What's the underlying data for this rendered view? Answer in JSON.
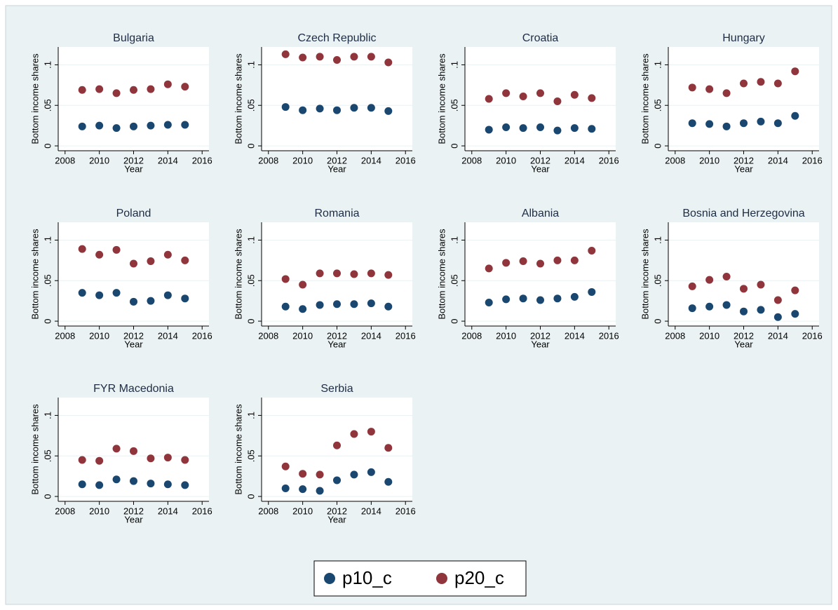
{
  "chart_data": [
    {
      "type": "scatter",
      "title": "Bulgaria",
      "xlabel": "Year",
      "ylabel": "Bottom income shares",
      "x": [
        2009,
        2010,
        2011,
        2012,
        2013,
        2014,
        2015
      ],
      "series": [
        {
          "name": "p10_c",
          "color": "#1a476f",
          "values": [
            0.024,
            0.025,
            0.022,
            0.024,
            0.025,
            0.026,
            0.026
          ]
        },
        {
          "name": "p20_c",
          "color": "#90353b",
          "values": [
            0.069,
            0.07,
            0.065,
            0.069,
            0.07,
            0.076,
            0.073
          ]
        }
      ],
      "xlim": [
        2007.6,
        2016.4
      ],
      "xticks": [
        2008,
        2010,
        2012,
        2014,
        2016
      ],
      "ylim": [
        -0.006,
        0.122
      ],
      "yticks": [
        0,
        {
          "value": 0.05,
          "label": ".05"
        },
        {
          "value": 0.1,
          "label": ".1"
        }
      ],
      "grid": true
    },
    {
      "type": "scatter",
      "title": "Czech Republic",
      "xlabel": "Year",
      "ylabel": "Bottom income shares",
      "x": [
        2009,
        2010,
        2011,
        2012,
        2013,
        2014,
        2015
      ],
      "series": [
        {
          "name": "p10_c",
          "color": "#1a476f",
          "values": [
            0.048,
            0.044,
            0.046,
            0.044,
            0.047,
            0.047,
            0.043
          ]
        },
        {
          "name": "p20_c",
          "color": "#90353b",
          "values": [
            0.113,
            0.109,
            0.11,
            0.106,
            0.11,
            0.11,
            0.103
          ]
        }
      ],
      "xlim": [
        2007.6,
        2016.4
      ],
      "xticks": [
        2008,
        2010,
        2012,
        2014,
        2016
      ],
      "ylim": [
        -0.006,
        0.122
      ],
      "yticks": [
        0,
        {
          "value": 0.05,
          "label": ".05"
        },
        {
          "value": 0.1,
          "label": ".1"
        }
      ],
      "grid": true
    },
    {
      "type": "scatter",
      "title": "Croatia",
      "xlabel": "Year",
      "ylabel": "Bottom income shares",
      "x": [
        2009,
        2010,
        2011,
        2012,
        2013,
        2014,
        2015
      ],
      "series": [
        {
          "name": "p10_c",
          "color": "#1a476f",
          "values": [
            0.02,
            0.023,
            0.022,
            0.023,
            0.019,
            0.022,
            0.021
          ]
        },
        {
          "name": "p20_c",
          "color": "#90353b",
          "values": [
            0.058,
            0.065,
            0.061,
            0.065,
            0.055,
            0.063,
            0.059
          ]
        }
      ],
      "xlim": [
        2007.6,
        2016.4
      ],
      "xticks": [
        2008,
        2010,
        2012,
        2014,
        2016
      ],
      "ylim": [
        -0.006,
        0.122
      ],
      "yticks": [
        0,
        {
          "value": 0.05,
          "label": ".05"
        },
        {
          "value": 0.1,
          "label": ".1"
        }
      ],
      "grid": true
    },
    {
      "type": "scatter",
      "title": "Hungary",
      "xlabel": "Year",
      "ylabel": "Bottom income shares",
      "x": [
        2009,
        2010,
        2011,
        2012,
        2013,
        2014,
        2015
      ],
      "series": [
        {
          "name": "p10_c",
          "color": "#1a476f",
          "values": [
            0.028,
            0.027,
            0.024,
            0.028,
            0.03,
            0.028,
            0.037
          ]
        },
        {
          "name": "p20_c",
          "color": "#90353b",
          "values": [
            0.072,
            0.07,
            0.065,
            0.077,
            0.079,
            0.077,
            0.092
          ]
        }
      ],
      "xlim": [
        2007.6,
        2016.4
      ],
      "xticks": [
        2008,
        2010,
        2012,
        2014,
        2016
      ],
      "ylim": [
        -0.006,
        0.122
      ],
      "yticks": [
        0,
        {
          "value": 0.05,
          "label": ".05"
        },
        {
          "value": 0.1,
          "label": ".1"
        }
      ],
      "grid": true
    },
    {
      "type": "scatter",
      "title": "Poland",
      "xlabel": "Year",
      "ylabel": "Bottom income shares",
      "x": [
        2009,
        2010,
        2011,
        2012,
        2013,
        2014,
        2015
      ],
      "series": [
        {
          "name": "p10_c",
          "color": "#1a476f",
          "values": [
            0.035,
            0.032,
            0.035,
            0.024,
            0.025,
            0.032,
            0.028
          ]
        },
        {
          "name": "p20_c",
          "color": "#90353b",
          "values": [
            0.089,
            0.082,
            0.088,
            0.071,
            0.074,
            0.082,
            0.075
          ]
        }
      ],
      "xlim": [
        2007.6,
        2016.4
      ],
      "xticks": [
        2008,
        2010,
        2012,
        2014,
        2016
      ],
      "ylim": [
        -0.006,
        0.122
      ],
      "yticks": [
        0,
        {
          "value": 0.05,
          "label": ".05"
        },
        {
          "value": 0.1,
          "label": ".1"
        }
      ],
      "grid": true
    },
    {
      "type": "scatter",
      "title": "Romania",
      "xlabel": "Year",
      "ylabel": "Bottom income shares",
      "x": [
        2009,
        2010,
        2011,
        2012,
        2013,
        2014,
        2015
      ],
      "series": [
        {
          "name": "p10_c",
          "color": "#1a476f",
          "values": [
            0.018,
            0.015,
            0.02,
            0.021,
            0.021,
            0.022,
            0.018
          ]
        },
        {
          "name": "p20_c",
          "color": "#90353b",
          "values": [
            0.052,
            0.045,
            0.059,
            0.059,
            0.058,
            0.059,
            0.057
          ]
        }
      ],
      "xlim": [
        2007.6,
        2016.4
      ],
      "xticks": [
        2008,
        2010,
        2012,
        2014,
        2016
      ],
      "ylim": [
        -0.006,
        0.122
      ],
      "yticks": [
        0,
        {
          "value": 0.05,
          "label": ".05"
        },
        {
          "value": 0.1,
          "label": ".1"
        }
      ],
      "grid": true
    },
    {
      "type": "scatter",
      "title": "Albania",
      "xlabel": "Year",
      "ylabel": "Bottom income shares",
      "x": [
        2009,
        2010,
        2011,
        2012,
        2013,
        2014,
        2015
      ],
      "series": [
        {
          "name": "p10_c",
          "color": "#1a476f",
          "values": [
            0.023,
            0.027,
            0.028,
            0.026,
            0.028,
            0.03,
            0.036
          ]
        },
        {
          "name": "p20_c",
          "color": "#90353b",
          "values": [
            0.065,
            0.072,
            0.074,
            0.071,
            0.075,
            0.075,
            0.087
          ]
        }
      ],
      "xlim": [
        2007.6,
        2016.4
      ],
      "xticks": [
        2008,
        2010,
        2012,
        2014,
        2016
      ],
      "ylim": [
        -0.006,
        0.122
      ],
      "yticks": [
        0,
        {
          "value": 0.05,
          "label": ".05"
        },
        {
          "value": 0.1,
          "label": ".1"
        }
      ],
      "grid": true
    },
    {
      "type": "scatter",
      "title": "Bosnia and Herzegovina",
      "xlabel": "Year",
      "ylabel": "Bottom income shares",
      "x": [
        2009,
        2010,
        2011,
        2012,
        2013,
        2014,
        2015
      ],
      "series": [
        {
          "name": "p10_c",
          "color": "#1a476f",
          "values": [
            0.016,
            0.018,
            0.02,
            0.012,
            0.014,
            0.005,
            0.009
          ]
        },
        {
          "name": "p20_c",
          "color": "#90353b",
          "values": [
            0.043,
            0.051,
            0.055,
            0.04,
            0.045,
            0.026,
            0.038
          ]
        }
      ],
      "xlim": [
        2007.6,
        2016.4
      ],
      "xticks": [
        2008,
        2010,
        2012,
        2014,
        2016
      ],
      "ylim": [
        -0.006,
        0.122
      ],
      "yticks": [
        0,
        {
          "value": 0.05,
          "label": ".05"
        },
        {
          "value": 0.1,
          "label": ".1"
        }
      ],
      "grid": true
    },
    {
      "type": "scatter",
      "title": "FYR Macedonia",
      "xlabel": "Year",
      "ylabel": "Bottom income shares",
      "x": [
        2009,
        2010,
        2011,
        2012,
        2013,
        2014,
        2015
      ],
      "series": [
        {
          "name": "p10_c",
          "color": "#1a476f",
          "values": [
            0.015,
            0.014,
            0.021,
            0.019,
            0.016,
            0.015,
            0.014
          ]
        },
        {
          "name": "p20_c",
          "color": "#90353b",
          "values": [
            0.045,
            0.044,
            0.059,
            0.056,
            0.047,
            0.048,
            0.045
          ]
        }
      ],
      "xlim": [
        2007.6,
        2016.4
      ],
      "xticks": [
        2008,
        2010,
        2012,
        2014,
        2016
      ],
      "ylim": [
        -0.006,
        0.122
      ],
      "yticks": [
        0,
        {
          "value": 0.05,
          "label": ".05"
        },
        {
          "value": 0.1,
          "label": ".1"
        }
      ],
      "grid": true
    },
    {
      "type": "scatter",
      "title": "Serbia",
      "xlabel": "Year",
      "ylabel": "Bottom income shares",
      "x": [
        2009,
        2010,
        2011,
        2012,
        2013,
        2014,
        2015
      ],
      "series": [
        {
          "name": "p10_c",
          "color": "#1a476f",
          "values": [
            0.01,
            0.009,
            0.007,
            0.02,
            0.027,
            0.03,
            0.018
          ]
        },
        {
          "name": "p20_c",
          "color": "#90353b",
          "values": [
            0.037,
            0.028,
            0.027,
            0.063,
            0.077,
            0.08,
            0.06
          ]
        }
      ],
      "xlim": [
        2007.6,
        2016.4
      ],
      "xticks": [
        2008,
        2010,
        2012,
        2014,
        2016
      ],
      "ylim": [
        -0.006,
        0.122
      ],
      "yticks": [
        0,
        {
          "value": 0.05,
          "label": ".05"
        },
        {
          "value": 0.1,
          "label": ".1"
        }
      ],
      "grid": true
    }
  ]
}
